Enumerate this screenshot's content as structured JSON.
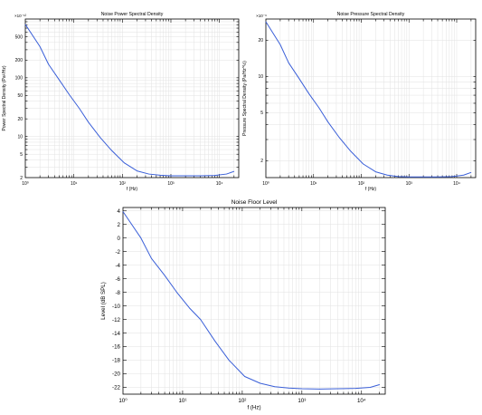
{
  "chart_data": [
    {
      "id": "psd",
      "type": "line",
      "title": "Noise Power Spectral Density",
      "xlabel": "f (Hz)",
      "ylabel": "Power Spectral Density (Pa²/Hz)",
      "y_exponent_label": "×10⁻¹²",
      "xscale": "log",
      "yscale": "log",
      "xlim": [
        1,
        25000
      ],
      "ylim": [
        2,
        1000
      ],
      "x_ticks": [
        1,
        10,
        100,
        1000,
        10000
      ],
      "x_tick_labels": [
        "10⁰",
        "10¹",
        "10²",
        "10³",
        "10⁴"
      ],
      "y_ticks": [
        2,
        5,
        10,
        20,
        50,
        100,
        200,
        500
      ],
      "y_tick_labels": [
        "2",
        "5",
        "10",
        "20",
        "50",
        "100",
        "200",
        "500"
      ],
      "grid": true,
      "series_color": "#3a5fd8",
      "series": [
        {
          "x": [
            1,
            2,
            3,
            5,
            8,
            13,
            20,
            35,
            60,
            110,
            200,
            350,
            600,
            1000,
            2000,
            4000,
            8000,
            14000,
            20000
          ],
          "y": [
            810,
            340,
            170,
            92,
            52,
            30,
            17.5,
            9.6,
            5.8,
            3.55,
            2.6,
            2.3,
            2.2,
            2.15,
            2.15,
            2.15,
            2.18,
            2.3,
            2.55
          ]
        }
      ]
    },
    {
      "id": "pressure",
      "type": "line",
      "title": "Noise Pressure Spectral Density",
      "xlabel": "f (Hz)",
      "ylabel": "Pressure Spectral Density (Pa/Hz^½)",
      "y_exponent_label": "×10⁻⁶",
      "xscale": "log",
      "yscale": "log",
      "xlim": [
        1,
        25000
      ],
      "ylim": [
        1.45,
        30
      ],
      "x_ticks": [
        1,
        10,
        100,
        1000,
        10000
      ],
      "x_tick_labels": [
        "10⁰",
        "10¹",
        "10²",
        "10³",
        "10⁴"
      ],
      "y_ticks": [
        2,
        5,
        10,
        20
      ],
      "y_tick_labels": [
        "2",
        "5",
        "10",
        "20"
      ],
      "grid": true,
      "series_color": "#3a5fd8",
      "series": [
        {
          "x": [
            1,
            2,
            3,
            5,
            8,
            13,
            20,
            35,
            60,
            110,
            200,
            350,
            600,
            1000,
            2000,
            4000,
            8000,
            14000,
            20000
          ],
          "y": [
            28.5,
            18.4,
            13.0,
            9.6,
            7.2,
            5.5,
            4.2,
            3.1,
            2.4,
            1.88,
            1.62,
            1.52,
            1.48,
            1.47,
            1.47,
            1.47,
            1.48,
            1.52,
            1.6
          ]
        }
      ]
    },
    {
      "id": "level",
      "type": "line",
      "title": "Noise Floor Level",
      "xlabel": "f (Hz)",
      "ylabel": "Level (dB SPL)",
      "xscale": "log",
      "yscale": "linear",
      "xlim": [
        1,
        25000
      ],
      "ylim": [
        -23,
        4.5
      ],
      "x_ticks": [
        1,
        10,
        100,
        1000,
        10000
      ],
      "x_tick_labels": [
        "10⁰",
        "10¹",
        "10²",
        "10³",
        "10⁴"
      ],
      "y_ticks": [
        4,
        2,
        0,
        -2,
        -4,
        -6,
        -8,
        -10,
        -12,
        -14,
        -16,
        -18,
        -20,
        -22
      ],
      "y_tick_labels": [
        "4",
        "2",
        "0",
        "-2",
        "-4",
        "-6",
        "-8",
        "-10",
        "-12",
        "-14",
        "-16",
        "-18",
        "-20",
        "-22"
      ],
      "grid": true,
      "series_color": "#3a5fd8",
      "series": [
        {
          "x": [
            1,
            2,
            3,
            5,
            8,
            13,
            20,
            35,
            60,
            110,
            200,
            350,
            600,
            1000,
            2000,
            4000,
            8000,
            14000,
            20000
          ],
          "y": [
            3.9,
            0,
            -3.0,
            -5.5,
            -8.0,
            -10.3,
            -12.0,
            -15.2,
            -18.0,
            -20.4,
            -21.4,
            -21.9,
            -22.1,
            -22.2,
            -22.25,
            -22.2,
            -22.15,
            -22.0,
            -21.6
          ]
        }
      ]
    }
  ]
}
